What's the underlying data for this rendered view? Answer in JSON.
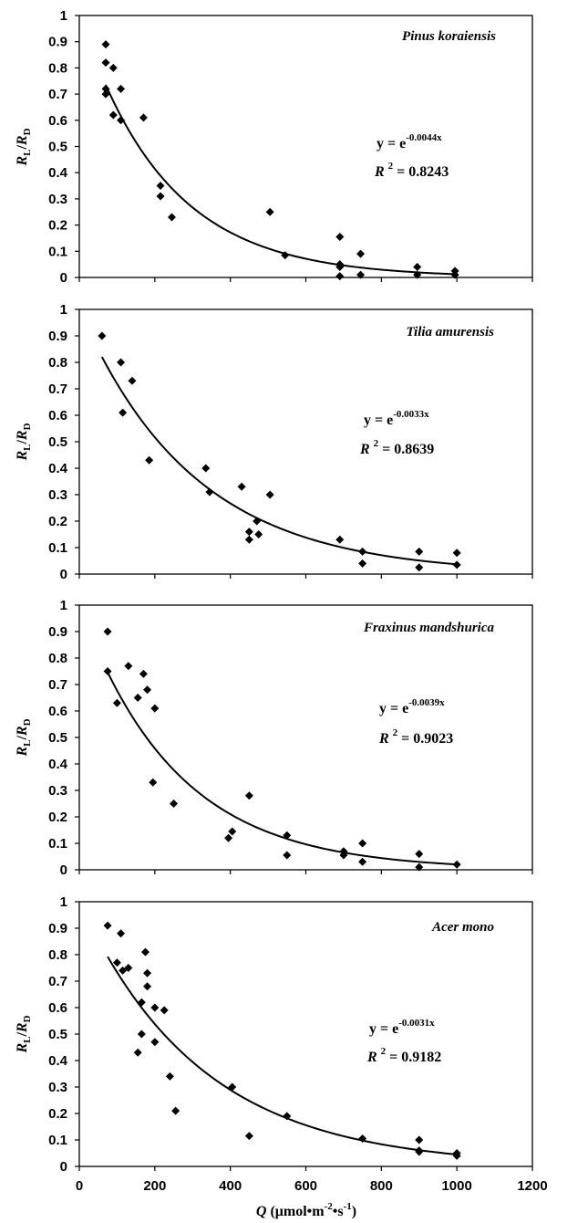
{
  "chart_data": [
    {
      "type": "scatter",
      "title": "Pinus koraiensis",
      "ylabel_main": "R",
      "ylabel_sub1": "L",
      "ylabel_sep": "/",
      "ylabel_main2": "R",
      "ylabel_sub2": "D",
      "ylim": [
        0,
        1
      ],
      "yticks": [
        "0",
        "0.1",
        "0.2",
        "0.3",
        "0.4",
        "0.5",
        "0.6",
        "0.7",
        "0.8",
        "0.9",
        "1"
      ],
      "xlim": [
        0,
        1200
      ],
      "equation_prefix": "y = e",
      "equation_exponent": "-0.0044x",
      "r2_label": "R",
      "r2_sup": "2",
      "r2_value": " = 0.8243",
      "fit_coefficient": -0.0044,
      "fit_range": [
        70,
        1000
      ],
      "points": [
        [
          70,
          0.89
        ],
        [
          70,
          0.82
        ],
        [
          70,
          0.72
        ],
        [
          70,
          0.7
        ],
        [
          90,
          0.8
        ],
        [
          90,
          0.62
        ],
        [
          110,
          0.72
        ],
        [
          110,
          0.6
        ],
        [
          170,
          0.61
        ],
        [
          215,
          0.35
        ],
        [
          215,
          0.31
        ],
        [
          245,
          0.23
        ],
        [
          505,
          0.25
        ],
        [
          545,
          0.085
        ],
        [
          690,
          0.155
        ],
        [
          690,
          0.05
        ],
        [
          690,
          0.04
        ],
        [
          690,
          0.005
        ],
        [
          745,
          0.09
        ],
        [
          745,
          0.01
        ],
        [
          895,
          0.04
        ],
        [
          895,
          0.01
        ],
        [
          995,
          0.025
        ],
        [
          995,
          0.01
        ]
      ]
    },
    {
      "type": "scatter",
      "title": "Tilia amurensis",
      "ylabel_main": "R",
      "ylabel_sub1": "L",
      "ylabel_sep": "/",
      "ylabel_main2": "R",
      "ylabel_sub2": "D",
      "ylim": [
        0,
        1
      ],
      "yticks": [
        "0",
        "0.1",
        "0.2",
        "0.3",
        "0.4",
        "0.5",
        "0.6",
        "0.7",
        "0.8",
        "0.9",
        "1"
      ],
      "xlim": [
        0,
        1200
      ],
      "equation_prefix": "y = e",
      "equation_exponent": "-0.0033x",
      "r2_label": "R",
      "r2_sup": "2",
      "r2_value": " = 0.8639",
      "fit_coefficient": -0.0033,
      "fit_range": [
        60,
        1000
      ],
      "points": [
        [
          60,
          0.9
        ],
        [
          110,
          0.8
        ],
        [
          115,
          0.61
        ],
        [
          140,
          0.73
        ],
        [
          185,
          0.43
        ],
        [
          335,
          0.4
        ],
        [
          345,
          0.31
        ],
        [
          430,
          0.33
        ],
        [
          450,
          0.16
        ],
        [
          450,
          0.13
        ],
        [
          470,
          0.2
        ],
        [
          475,
          0.15
        ],
        [
          505,
          0.3
        ],
        [
          690,
          0.13
        ],
        [
          750,
          0.085
        ],
        [
          750,
          0.04
        ],
        [
          900,
          0.085
        ],
        [
          900,
          0.025
        ],
        [
          1000,
          0.08
        ],
        [
          1000,
          0.035
        ]
      ]
    },
    {
      "type": "scatter",
      "title": "Fraxinus mandshurica",
      "ylabel_main": "R",
      "ylabel_sub1": "L",
      "ylabel_sep": "/",
      "ylabel_main2": "R",
      "ylabel_sub2": "D",
      "ylim": [
        0,
        1
      ],
      "yticks": [
        "0",
        "0.1",
        "0.2",
        "0.3",
        "0.4",
        "0.5",
        "0.6",
        "0.7",
        "0.8",
        "0.9",
        "1"
      ],
      "xlim": [
        0,
        1200
      ],
      "equation_prefix": "y = e",
      "equation_exponent": "-0.0039x",
      "r2_label": "R",
      "r2_sup": "2",
      "r2_value": " = 0.9023",
      "fit_coefficient": -0.0039,
      "fit_range": [
        75,
        1000
      ],
      "points": [
        [
          75,
          0.9
        ],
        [
          75,
          0.75
        ],
        [
          100,
          0.63
        ],
        [
          130,
          0.77
        ],
        [
          155,
          0.65
        ],
        [
          170,
          0.74
        ],
        [
          180,
          0.68
        ],
        [
          200,
          0.61
        ],
        [
          195,
          0.33
        ],
        [
          250,
          0.25
        ],
        [
          395,
          0.12
        ],
        [
          405,
          0.145
        ],
        [
          450,
          0.28
        ],
        [
          550,
          0.13
        ],
        [
          550,
          0.055
        ],
        [
          700,
          0.07
        ],
        [
          700,
          0.055
        ],
        [
          750,
          0.1
        ],
        [
          750,
          0.03
        ],
        [
          900,
          0.06
        ],
        [
          900,
          0.01
        ],
        [
          1000,
          0.02
        ]
      ]
    },
    {
      "type": "scatter",
      "title": "Acer mono",
      "ylabel_main": "R",
      "ylabel_sub1": "L",
      "ylabel_sep": "/",
      "ylabel_main2": "R",
      "ylabel_sub2": "D",
      "ylim": [
        0,
        1
      ],
      "yticks": [
        "0",
        "0.1",
        "0.2",
        "0.3",
        "0.4",
        "0.5",
        "0.6",
        "0.7",
        "0.8",
        "0.9",
        "1"
      ],
      "xlim": [
        0,
        1200
      ],
      "xticks": [
        "0",
        "200",
        "400",
        "600",
        "800",
        "1000",
        "1200"
      ],
      "xlabel_main": "Q",
      "xlabel_unit": "(μmol•m",
      "xlabel_sup1": "-2",
      "xlabel_mid": "•s",
      "xlabel_sup2": "-1",
      "xlabel_end": ")",
      "equation_prefix": "y = e",
      "equation_exponent": "-0.0031x",
      "r2_label": "R",
      "r2_sup": "2",
      "r2_value": " = 0.9182",
      "fit_coefficient": -0.0031,
      "fit_range": [
        75,
        1000
      ],
      "points": [
        [
          75,
          0.91
        ],
        [
          100,
          0.77
        ],
        [
          110,
          0.88
        ],
        [
          115,
          0.74
        ],
        [
          130,
          0.75
        ],
        [
          155,
          0.43
        ],
        [
          165,
          0.62
        ],
        [
          165,
          0.5
        ],
        [
          175,
          0.81
        ],
        [
          180,
          0.73
        ],
        [
          180,
          0.68
        ],
        [
          200,
          0.6
        ],
        [
          200,
          0.47
        ],
        [
          225,
          0.59
        ],
        [
          240,
          0.34
        ],
        [
          255,
          0.21
        ],
        [
          405,
          0.3
        ],
        [
          450,
          0.115
        ],
        [
          550,
          0.19
        ],
        [
          750,
          0.105
        ],
        [
          900,
          0.1
        ],
        [
          900,
          0.06
        ],
        [
          900,
          0.055
        ],
        [
          1000,
          0.05
        ],
        [
          1000,
          0.04
        ]
      ]
    }
  ]
}
